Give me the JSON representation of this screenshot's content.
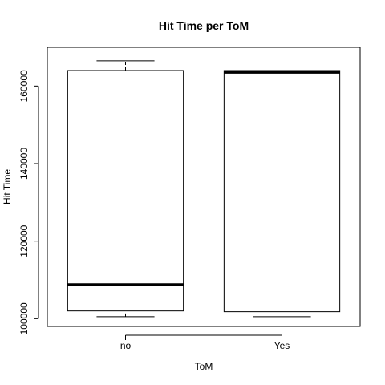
{
  "chart_data": {
    "type": "boxplot",
    "title": "Hit Time per ToM",
    "xlabel": "ToM",
    "ylabel": "Hit Time",
    "categories": [
      "no",
      "Yes"
    ],
    "ylim": [
      98000,
      170000
    ],
    "yticks": [
      100000,
      120000,
      140000,
      160000
    ],
    "ytick_labels": [
      "100000",
      "120000",
      "140000",
      "160000"
    ],
    "boxes": [
      {
        "category": "no",
        "whisker_low": 100500,
        "q1": 102000,
        "median": 108800,
        "q3": 164000,
        "whisker_high": 166500
      },
      {
        "category": "Yes",
        "whisker_low": 100500,
        "q1": 101800,
        "median": 163500,
        "q3": 164000,
        "whisker_high": 167000
      }
    ],
    "grid": false,
    "legend": "none"
  }
}
